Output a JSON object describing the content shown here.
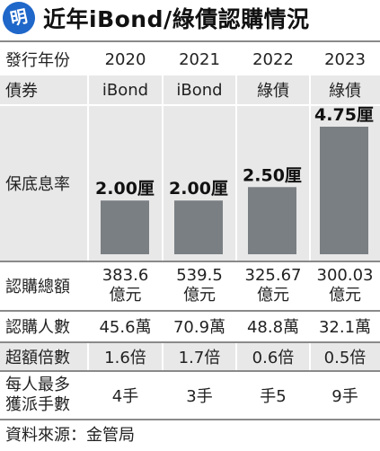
{
  "header": {
    "logo_text": "明",
    "title": "近年iBond/綠債認購情況",
    "logo_color": "#1f67c9"
  },
  "table": {
    "year_label": "發行年份",
    "years": [
      "2020",
      "2021",
      "2022",
      "2023"
    ],
    "bond_label": "債券",
    "bonds": [
      "iBond",
      "iBond",
      "綠債",
      "綠債"
    ],
    "rate_label": "保底息率",
    "subscription_amount_label": "認購總額",
    "subscription_amounts": [
      [
        "383.6",
        "億元"
      ],
      [
        "539.5",
        "億元"
      ],
      [
        "325.67",
        "億元"
      ],
      [
        "300.03",
        "億元"
      ]
    ],
    "subscribers_label": "認購人數",
    "subscribers": [
      "45.6萬",
      "70.9萬",
      "48.8萬",
      "32.1萬"
    ],
    "oversubscription_label": "超額倍數",
    "oversubscriptions": [
      "1.6倍",
      "1.7倍",
      "0.6倍",
      "0.5倍"
    ],
    "allotment_label_line1": "每人最多",
    "allotment_label_line2": "獲派手數",
    "allotments": [
      "4手",
      "3手",
      "手5",
      "9手"
    ]
  },
  "chart_data": {
    "type": "bar",
    "categories": [
      "2020",
      "2021",
      "2022",
      "2023"
    ],
    "values": [
      2.0,
      2.0,
      2.5,
      4.75
    ],
    "value_labels": [
      "2.00厘",
      "2.00厘",
      "2.50厘",
      "4.75厘"
    ],
    "ylabel": "保底息率",
    "bar_color": "#7a7f83"
  },
  "source": "資料來源：金管局"
}
